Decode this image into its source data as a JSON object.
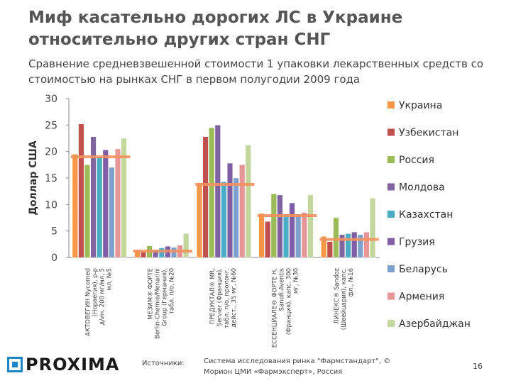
{
  "slide": {
    "title": "Миф касательно дорогих ЛС в Украине относительно других стран СНГ",
    "subtitle": "Сравнение средневзвешенной стоимости 1 упаковки лекарственных средств со стоимостью на рынках СНГ в первом полугодии 2009 года",
    "logo_text": "PROXIMA",
    "sources_label": "Источники:",
    "sources_text": "Система исследования ринка \"Фармстандарт\", © Морион ЦМИ «Фармэксперт», Россия",
    "page_number": "16"
  },
  "chart_data": {
    "type": "bar",
    "ylabel": "Доллар США",
    "ylim": [
      0,
      30
    ],
    "yticks": [
      0,
      5,
      10,
      15,
      20,
      25,
      30
    ],
    "categories": [
      "АКТОВЕГИН Nycomed (Норвегия), р-р д/ин. 200 мг/мл, 5 мл, №5",
      "МЕЗИМ® ФОРТЕ Berlin-Chemie/Menarini Group (Германия), табл. п/о, №20",
      "ПРЕДУКТАЛ® MR, Servier (Франция), табл. п/о, пролонг. дейст., 35 мг, №60",
      "ЕССЕНЦИАЛЕ® ФОРТЕ Н, Sanofi-Aventis (Франция), капс. 300 мг, №30",
      "ЛИНЕКС® Sandoz (Швейцария), капс. фл., №16"
    ],
    "series": [
      {
        "name": "Украина",
        "color": "#f79646",
        "values": [
          19.5,
          1.5,
          14,
          8.3,
          4.0
        ]
      },
      {
        "name": "Узбекистан",
        "color": "#c0504d",
        "values": [
          25.2,
          1.0,
          22.8,
          6.8,
          3.0
        ]
      },
      {
        "name": "Россия",
        "color": "#9bbb59",
        "values": [
          17.5,
          2.2,
          24.5,
          12.0,
          7.5
        ]
      },
      {
        "name": "Молдова",
        "color": "#8064a2",
        "values": [
          22.8,
          1.5,
          25.0,
          11.8,
          4.3
        ]
      },
      {
        "name": "Казахстан",
        "color": "#4bacc6",
        "values": [
          19.0,
          1.8,
          14.3,
          8.2,
          4.5
        ]
      },
      {
        "name": "Грузия",
        "color": "#7e5fa6",
        "values": [
          20.3,
          2.1,
          17.8,
          10.3,
          4.8
        ]
      },
      {
        "name": "Беларусь",
        "color": "#7ea0cc",
        "values": [
          17.0,
          1.9,
          15.0,
          8.2,
          4.3
        ]
      },
      {
        "name": "Армения",
        "color": "#e69696",
        "values": [
          20.5,
          2.3,
          17.5,
          8.5,
          4.8
        ]
      },
      {
        "name": "Азербайджан",
        "color": "#c3d69b",
        "values": [
          22.5,
          4.5,
          21.2,
          11.8,
          11.2
        ]
      }
    ],
    "reference_lines": [
      19.0,
      1.2,
      13.8,
      7.9,
      3.4
    ],
    "reference_color": "#f4915e",
    "legend_position": "right",
    "grid": false
  }
}
